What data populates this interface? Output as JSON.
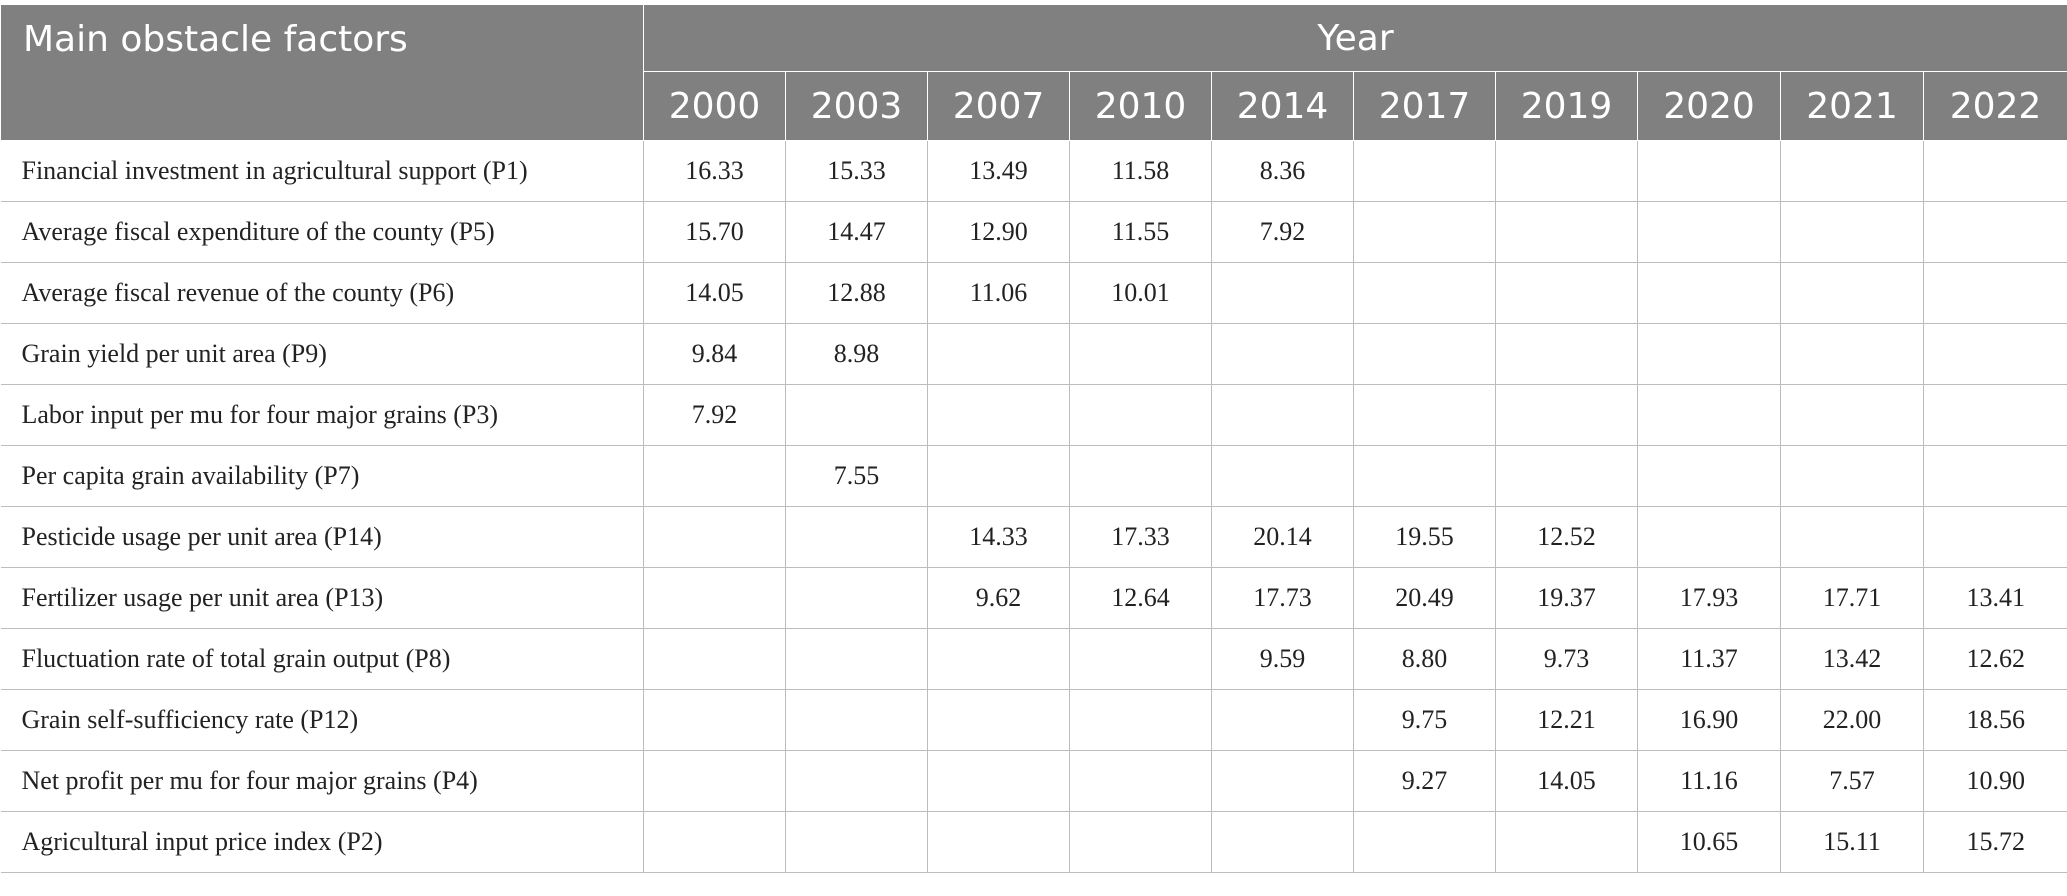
{
  "header": {
    "factor_label": "Main obstacle factors",
    "year_group_label": "Year",
    "years": [
      "2000",
      "2003",
      "2007",
      "2010",
      "2014",
      "2017",
      "2019",
      "2020",
      "2021",
      "2022"
    ]
  },
  "rows": [
    {
      "factor": "Financial investment in agricultural support (P1)",
      "values": [
        "16.33",
        "15.33",
        "13.49",
        "11.58",
        "8.36",
        "",
        "",
        "",
        "",
        ""
      ]
    },
    {
      "factor": "Average fiscal expenditure of the county (P5)",
      "values": [
        "15.70",
        "14.47",
        "12.90",
        "11.55",
        "7.92",
        "",
        "",
        "",
        "",
        ""
      ]
    },
    {
      "factor": "Average fiscal revenue of the county (P6)",
      "values": [
        "14.05",
        "12.88",
        "11.06",
        "10.01",
        "",
        "",
        "",
        "",
        "",
        ""
      ]
    },
    {
      "factor": "Grain yield per unit area (P9)",
      "values": [
        "9.84",
        "8.98",
        "",
        "",
        "",
        "",
        "",
        "",
        "",
        ""
      ]
    },
    {
      "factor": "Labor input per mu for four major grains (P3)",
      "values": [
        "7.92",
        "",
        "",
        "",
        "",
        "",
        "",
        "",
        "",
        ""
      ]
    },
    {
      "factor": "Per capita grain availability (P7)",
      "values": [
        "",
        "7.55",
        "",
        "",
        "",
        "",
        "",
        "",
        "",
        ""
      ]
    },
    {
      "factor": "Pesticide usage per unit area (P14)",
      "values": [
        "",
        "",
        "14.33",
        "17.33",
        "20.14",
        "19.55",
        "12.52",
        "",
        "",
        ""
      ]
    },
    {
      "factor": "Fertilizer usage per unit area (P13)",
      "values": [
        "",
        "",
        "9.62",
        "12.64",
        "17.73",
        "20.49",
        "19.37",
        "17.93",
        "17.71",
        "13.41"
      ]
    },
    {
      "factor": "Fluctuation rate of total grain output (P8)",
      "values": [
        "",
        "",
        "",
        "",
        "9.59",
        "8.80",
        "9.73",
        "11.37",
        "13.42",
        "12.62"
      ]
    },
    {
      "factor": "Grain self-sufficiency rate (P12)",
      "values": [
        "",
        "",
        "",
        "",
        "",
        "9.75",
        "12.21",
        "16.90",
        "22.00",
        "18.56"
      ]
    },
    {
      "factor": "Net profit per mu for four major grains (P4)",
      "values": [
        "",
        "",
        "",
        "",
        "",
        "9.27",
        "14.05",
        "11.16",
        "7.57",
        "10.90"
      ]
    },
    {
      "factor": "Agricultural input price index (P2)",
      "values": [
        "",
        "",
        "",
        "",
        "",
        "",
        "",
        "10.65",
        "15.11",
        "15.72"
      ]
    }
  ]
}
